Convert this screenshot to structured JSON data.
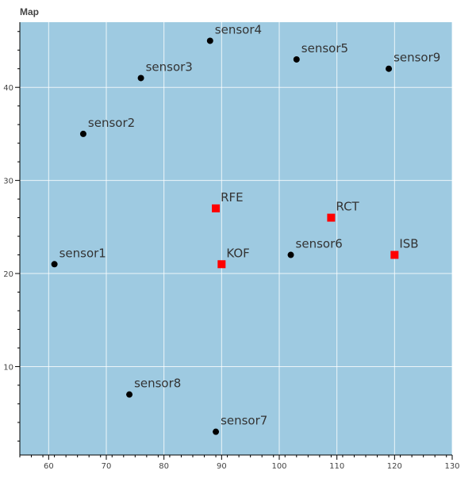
{
  "chart_data": {
    "type": "scatter",
    "title": "Map",
    "xlabel": "",
    "ylabel": "",
    "xlim": [
      55,
      130
    ],
    "ylim": [
      0.5,
      47
    ],
    "x_ticks": [
      60,
      70,
      80,
      90,
      100,
      110,
      120,
      130
    ],
    "y_ticks": [
      10,
      20,
      30,
      40
    ],
    "grid": true,
    "background_color": "#9ecae1",
    "series": [
      {
        "marker": "circle",
        "color": "#000000",
        "points": [
          {
            "x": 61,
            "y": 21,
            "label": "sensor1"
          },
          {
            "x": 66,
            "y": 35,
            "label": "sensor2"
          },
          {
            "x": 76,
            "y": 41,
            "label": "sensor3"
          },
          {
            "x": 88,
            "y": 45,
            "label": "sensor4"
          },
          {
            "x": 103,
            "y": 43,
            "label": "sensor5"
          },
          {
            "x": 102,
            "y": 22,
            "label": "sensor6"
          },
          {
            "x": 89,
            "y": 3,
            "label": "sensor7"
          },
          {
            "x": 74,
            "y": 7,
            "label": "sensor8"
          },
          {
            "x": 119,
            "y": 42,
            "label": "sensor9"
          }
        ]
      },
      {
        "marker": "square",
        "color": "#ff0000",
        "points": [
          {
            "x": 89,
            "y": 27,
            "label": "RFE"
          },
          {
            "x": 90,
            "y": 21,
            "label": "KOF"
          },
          {
            "x": 109,
            "y": 26,
            "label": "RCT"
          },
          {
            "x": 120,
            "y": 22,
            "label": "ISB"
          }
        ]
      }
    ]
  }
}
